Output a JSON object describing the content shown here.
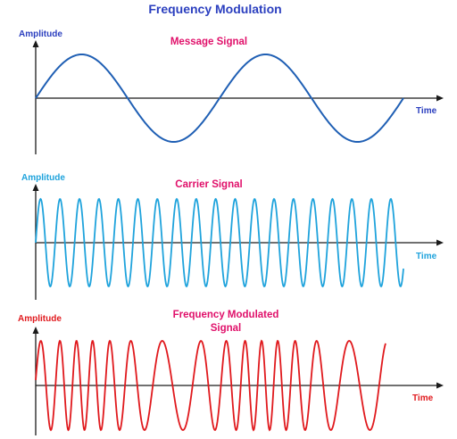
{
  "title": "Frequency Modulation",
  "panels": [
    {
      "amplitude_label": "Amplitude",
      "signal_label": "Message Signal",
      "signal_label_line2": "",
      "time_label": "Time",
      "wave_color": "#1f5fb4",
      "label_color": "#2b3fbf",
      "signal_label_color": "#e0106a",
      "axis_color": "#1a1a1a"
    },
    {
      "amplitude_label": "Amplitude",
      "signal_label": "Carrier Signal",
      "signal_label_line2": "",
      "time_label": "Time",
      "wave_color": "#1fa3dc",
      "label_color": "#1fa3dc",
      "signal_label_color": "#e0106a",
      "axis_color": "#1a1a1a"
    },
    {
      "amplitude_label": "Amplitude",
      "signal_label": "Frequency Modulated",
      "signal_label_line2": "Signal",
      "time_label": "Time",
      "wave_color": "#e0191d",
      "label_color": "#e0191d",
      "signal_label_color": "#e0106a",
      "axis_color": "#1a1a1a"
    }
  ],
  "title_color": "#2b3fbf"
}
